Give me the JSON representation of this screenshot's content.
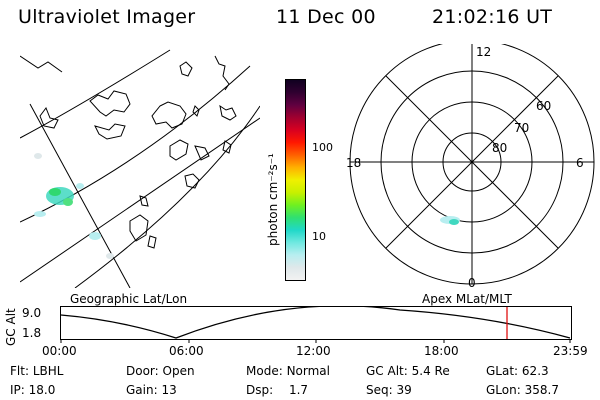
{
  "header": {
    "instrument": "Ultraviolet Imager",
    "date": "11 Dec 00",
    "time": "21:02:16 UT"
  },
  "colorbar": {
    "unit_label": "photon cm⁻²s⁻¹",
    "ticks": [
      "100",
      "10"
    ],
    "colors": [
      "#f2f2f2",
      "#dfe8ea",
      "#b8eef0",
      "#6fe8e0",
      "#20d8c8",
      "#30e070",
      "#70f020",
      "#c8f000",
      "#f0f000",
      "#ffb000",
      "#ff6000",
      "#ff1800",
      "#d80020",
      "#a00030",
      "#600040",
      "#300030",
      "#100020"
    ]
  },
  "geographic_map": {
    "label": "Geographic Lat/Lon"
  },
  "polar_plot": {
    "label": "Apex MLat/MLT",
    "mlt_labels": [
      "12",
      "18",
      "6",
      "0"
    ],
    "mlat_labels": [
      "60",
      "70",
      "80"
    ]
  },
  "altitude_strip": {
    "ylabel": "GC Alt",
    "yticks": [
      "9.0",
      "1.8"
    ],
    "xticks": [
      "00:00",
      "06:00",
      "12:00",
      "18:00",
      "23:59"
    ],
    "current_time_marker": "21:02"
  },
  "status": {
    "row1": [
      {
        "label": "Flt:",
        "value": "LBHL"
      },
      {
        "label": "Door:",
        "value": "Open"
      },
      {
        "label": "Mode:",
        "value": "Normal"
      },
      {
        "label": "GC Alt:",
        "value": "5.4 Re"
      },
      {
        "label": "GLat:",
        "value": "62.3"
      }
    ],
    "row2": [
      {
        "label": "IP:",
        "value": "18.0"
      },
      {
        "label": "Gain:",
        "value": "13"
      },
      {
        "label": "Dsp:",
        "value": "1.7"
      },
      {
        "label": "Seq:",
        "value": "39"
      },
      {
        "label": "GLon:",
        "value": "358.7"
      }
    ]
  }
}
